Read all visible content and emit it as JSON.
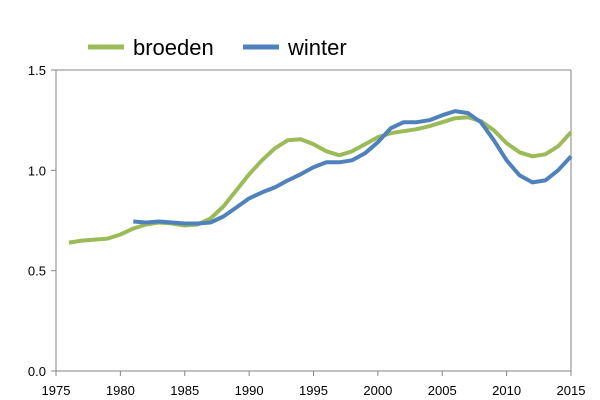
{
  "chart_data": {
    "type": "line",
    "title": "",
    "xlabel": "",
    "ylabel": "",
    "xlim": [
      1975,
      2015
    ],
    "ylim": [
      0.0,
      1.5
    ],
    "x_ticks": [
      "1975",
      "1980",
      "1985",
      "1990",
      "1995",
      "2000",
      "2005",
      "2010",
      "2015"
    ],
    "y_ticks": [
      "0.0",
      "0.5",
      "1.0",
      "1.5"
    ],
    "grid": false,
    "legend_position": "top-left",
    "series": [
      {
        "name": "broeden",
        "color": "#9bbb59",
        "x": [
          1976,
          1977,
          1978,
          1979,
          1980,
          1981,
          1982,
          1983,
          1984,
          1985,
          1986,
          1987,
          1988,
          1989,
          1990,
          1991,
          1992,
          1993,
          1994,
          1995,
          1996,
          1997,
          1998,
          1999,
          2000,
          2001,
          2002,
          2003,
          2004,
          2005,
          2006,
          2007,
          2008,
          2009,
          2010,
          2011,
          2012,
          2013,
          2014,
          2015
        ],
        "values": [
          0.64,
          0.65,
          0.655,
          0.66,
          0.68,
          0.71,
          0.73,
          0.74,
          0.735,
          0.725,
          0.73,
          0.76,
          0.82,
          0.9,
          0.98,
          1.05,
          1.11,
          1.15,
          1.155,
          1.13,
          1.095,
          1.075,
          1.095,
          1.13,
          1.165,
          1.185,
          1.195,
          1.205,
          1.22,
          1.24,
          1.26,
          1.265,
          1.245,
          1.2,
          1.135,
          1.09,
          1.07,
          1.08,
          1.12,
          1.19
        ]
      },
      {
        "name": "winter",
        "color": "#4f81bd",
        "x": [
          1981,
          1982,
          1983,
          1984,
          1985,
          1986,
          1987,
          1988,
          1989,
          1990,
          1991,
          1992,
          1993,
          1994,
          1995,
          1996,
          1997,
          1998,
          1999,
          2000,
          2001,
          2002,
          2003,
          2004,
          2005,
          2006,
          2007,
          2008,
          2009,
          2010,
          2011,
          2012,
          2013,
          2014,
          2015
        ],
        "values": [
          0.745,
          0.74,
          0.745,
          0.74,
          0.735,
          0.735,
          0.74,
          0.77,
          0.815,
          0.86,
          0.89,
          0.915,
          0.95,
          0.98,
          1.015,
          1.04,
          1.04,
          1.05,
          1.085,
          1.14,
          1.21,
          1.24,
          1.24,
          1.25,
          1.275,
          1.295,
          1.285,
          1.24,
          1.15,
          1.05,
          0.975,
          0.94,
          0.95,
          1.0,
          1.07
        ]
      }
    ]
  }
}
